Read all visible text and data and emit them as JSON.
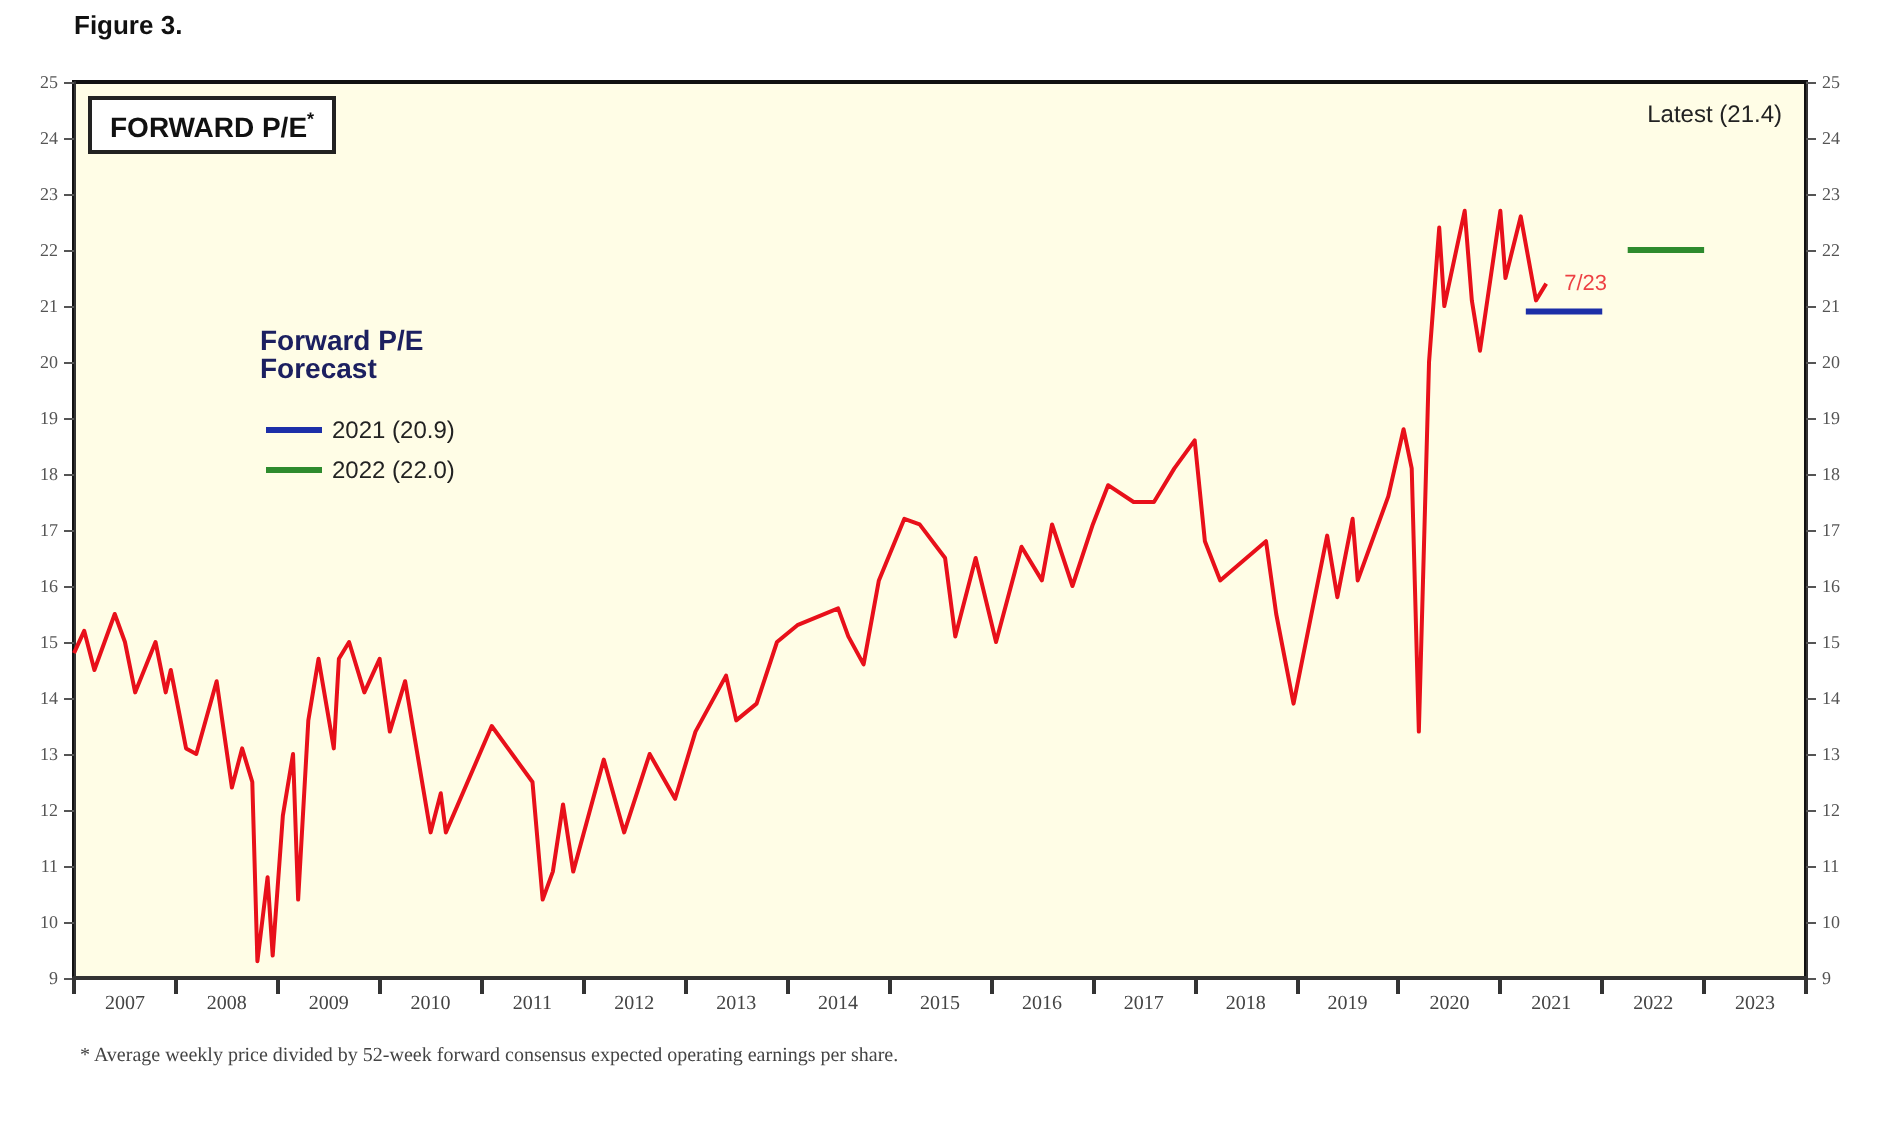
{
  "chart_data": {
    "type": "line",
    "title": "FORWARD P/E$^{*}$",
    "legend_title": "Forward P/E Forecast",
    "legend": "left",
    "grid": false,
    "marker": "none",
    "line_style": "solid",
    "annotations": [
      "Figure 3.",
      "Latest (21.4)",
      {
        "text": "7/23",
        "x": 2021.45,
        "y": 21.4
      },
      "* Average weekly price divided by 52-week forward consensus expected operating earnings per share."
    ],
    "xlim": [
      2007,
      2024
    ],
    "xticks": [
      {
        "value": 2007,
        "label": null
      },
      {
        "value": 2007.5,
        "label": "2007"
      },
      {
        "value": 2008,
        "label": null
      },
      {
        "value": 2008.5,
        "label": "2008"
      },
      {
        "value": 2009,
        "label": null
      },
      {
        "value": 2009.5,
        "label": "2009"
      },
      {
        "value": 2010,
        "label": null
      },
      {
        "value": 2010.5,
        "label": "2010"
      },
      {
        "value": 2011,
        "label": null
      },
      {
        "value": 2011.5,
        "label": "2011"
      },
      {
        "value": 2012,
        "label": null
      },
      {
        "value": 2012.5,
        "label": "2012"
      },
      {
        "value": 2013,
        "label": null
      },
      {
        "value": 2013.5,
        "label": "2013"
      },
      {
        "value": 2014,
        "label": null
      },
      {
        "value": 2014.5,
        "label": "2014"
      },
      {
        "value": 2015,
        "label": null
      },
      {
        "value": 2015.5,
        "label": "2015"
      },
      {
        "value": 2016,
        "label": null
      },
      {
        "value": 2016.5,
        "label": "2016"
      },
      {
        "value": 2017,
        "label": null
      },
      {
        "value": 2017.5,
        "label": "2017"
      },
      {
        "value": 2018,
        "label": null
      },
      {
        "value": 2018.5,
        "label": "2018"
      },
      {
        "value": 2019,
        "label": null
      },
      {
        "value": 2019.5,
        "label": "2019"
      },
      {
        "value": 2020,
        "label": null
      },
      {
        "value": 2020.5,
        "label": "2020"
      },
      {
        "value": 2021,
        "label": null
      },
      {
        "value": 2021.5,
        "label": "2021"
      },
      {
        "value": 2022,
        "label": null
      },
      {
        "value": 2022.5,
        "label": "2022"
      },
      {
        "value": 2023,
        "label": null
      },
      {
        "value": 2023.5,
        "label": "2023"
      },
      {
        "value": 2024,
        "label": null
      }
    ],
    "ylim": [
      9,
      25
    ],
    "yticks": [
      9,
      10,
      11,
      12,
      13,
      14,
      15,
      16,
      17,
      18,
      19,
      20,
      21,
      22,
      23,
      24,
      25
    ],
    "y2lim": [
      9,
      25
    ],
    "y2ticks": [
      9,
      10,
      11,
      12,
      13,
      14,
      15,
      16,
      17,
      18,
      19,
      20,
      21,
      22,
      23,
      24,
      25
    ],
    "series": [
      {
        "color": "#e8101a",
        "x": [
          2007.0,
          2007.1,
          2007.2,
          2007.4,
          2007.5,
          2007.6,
          2007.8,
          2007.9,
          2007.95,
          2008.1,
          2008.2,
          2008.4,
          2008.55,
          2008.65,
          2008.75,
          2008.8,
          2008.9,
          2008.95,
          2009.05,
          2009.15,
          2009.2,
          2009.3,
          2009.4,
          2009.55,
          2009.6,
          2009.7,
          2009.85,
          2010.0,
          2010.1,
          2010.25,
          2010.5,
          2010.6,
          2010.65,
          2011.1,
          2011.3,
          2011.5,
          2011.6,
          2011.7,
          2011.8,
          2011.9,
          2012.2,
          2012.4,
          2012.65,
          2012.9,
          2013.1,
          2013.4,
          2013.5,
          2013.7,
          2013.9,
          2014.1,
          2014.5,
          2014.6,
          2014.75,
          2014.9,
          2015.15,
          2015.3,
          2015.55,
          2015.65,
          2015.85,
          2016.05,
          2016.3,
          2016.5,
          2016.6,
          2016.8,
          2017.0,
          2017.15,
          2017.4,
          2017.6,
          2017.8,
          2018.0,
          2018.1,
          2018.25,
          2018.7,
          2018.8,
          2018.97,
          2019.3,
          2019.4,
          2019.55,
          2019.6,
          2019.9,
          2020.05,
          2020.13,
          2020.2,
          2020.3,
          2020.4,
          2020.45,
          2020.65,
          2020.72,
          2020.8,
          2021.0,
          2021.05,
          2021.2,
          2021.35,
          2021.45
        ],
        "values": [
          14.8,
          15.2,
          14.5,
          15.5,
          15.0,
          14.1,
          15.0,
          14.1,
          14.5,
          13.1,
          13.0,
          14.3,
          12.4,
          13.1,
          12.5,
          9.3,
          10.8,
          9.4,
          11.9,
          13.0,
          10.4,
          13.6,
          14.7,
          13.1,
          14.7,
          15.0,
          14.1,
          14.7,
          13.4,
          14.3,
          11.6,
          12.3,
          11.6,
          13.5,
          13.0,
          12.5,
          10.4,
          10.9,
          12.1,
          10.9,
          12.9,
          11.6,
          13.0,
          12.2,
          13.4,
          14.4,
          13.6,
          13.9,
          15.0,
          15.3,
          15.6,
          15.1,
          14.6,
          16.1,
          17.2,
          17.1,
          16.5,
          15.1,
          16.5,
          15.0,
          16.7,
          16.1,
          17.1,
          16.0,
          17.1,
          17.8,
          17.5,
          17.5,
          18.1,
          18.6,
          16.8,
          16.1,
          16.8,
          15.5,
          13.9,
          16.9,
          15.8,
          17.2,
          16.1,
          17.6,
          18.8,
          18.1,
          13.4,
          20.0,
          22.4,
          21.0,
          22.7,
          21.1,
          20.2,
          22.7,
          21.5,
          22.6,
          21.1,
          21.4
        ]
      },
      {
        "name": "2021 (20.9)",
        "color": "#1c2fa8",
        "x": [
          2021.25,
          2022.0
        ],
        "values": [
          20.9,
          20.9
        ]
      },
      {
        "name": "2022 (22.0)",
        "color": "#2e8b2e",
        "x": [
          2022.25,
          2023.0
        ],
        "values": [
          22.0,
          22.0
        ]
      }
    ]
  }
}
